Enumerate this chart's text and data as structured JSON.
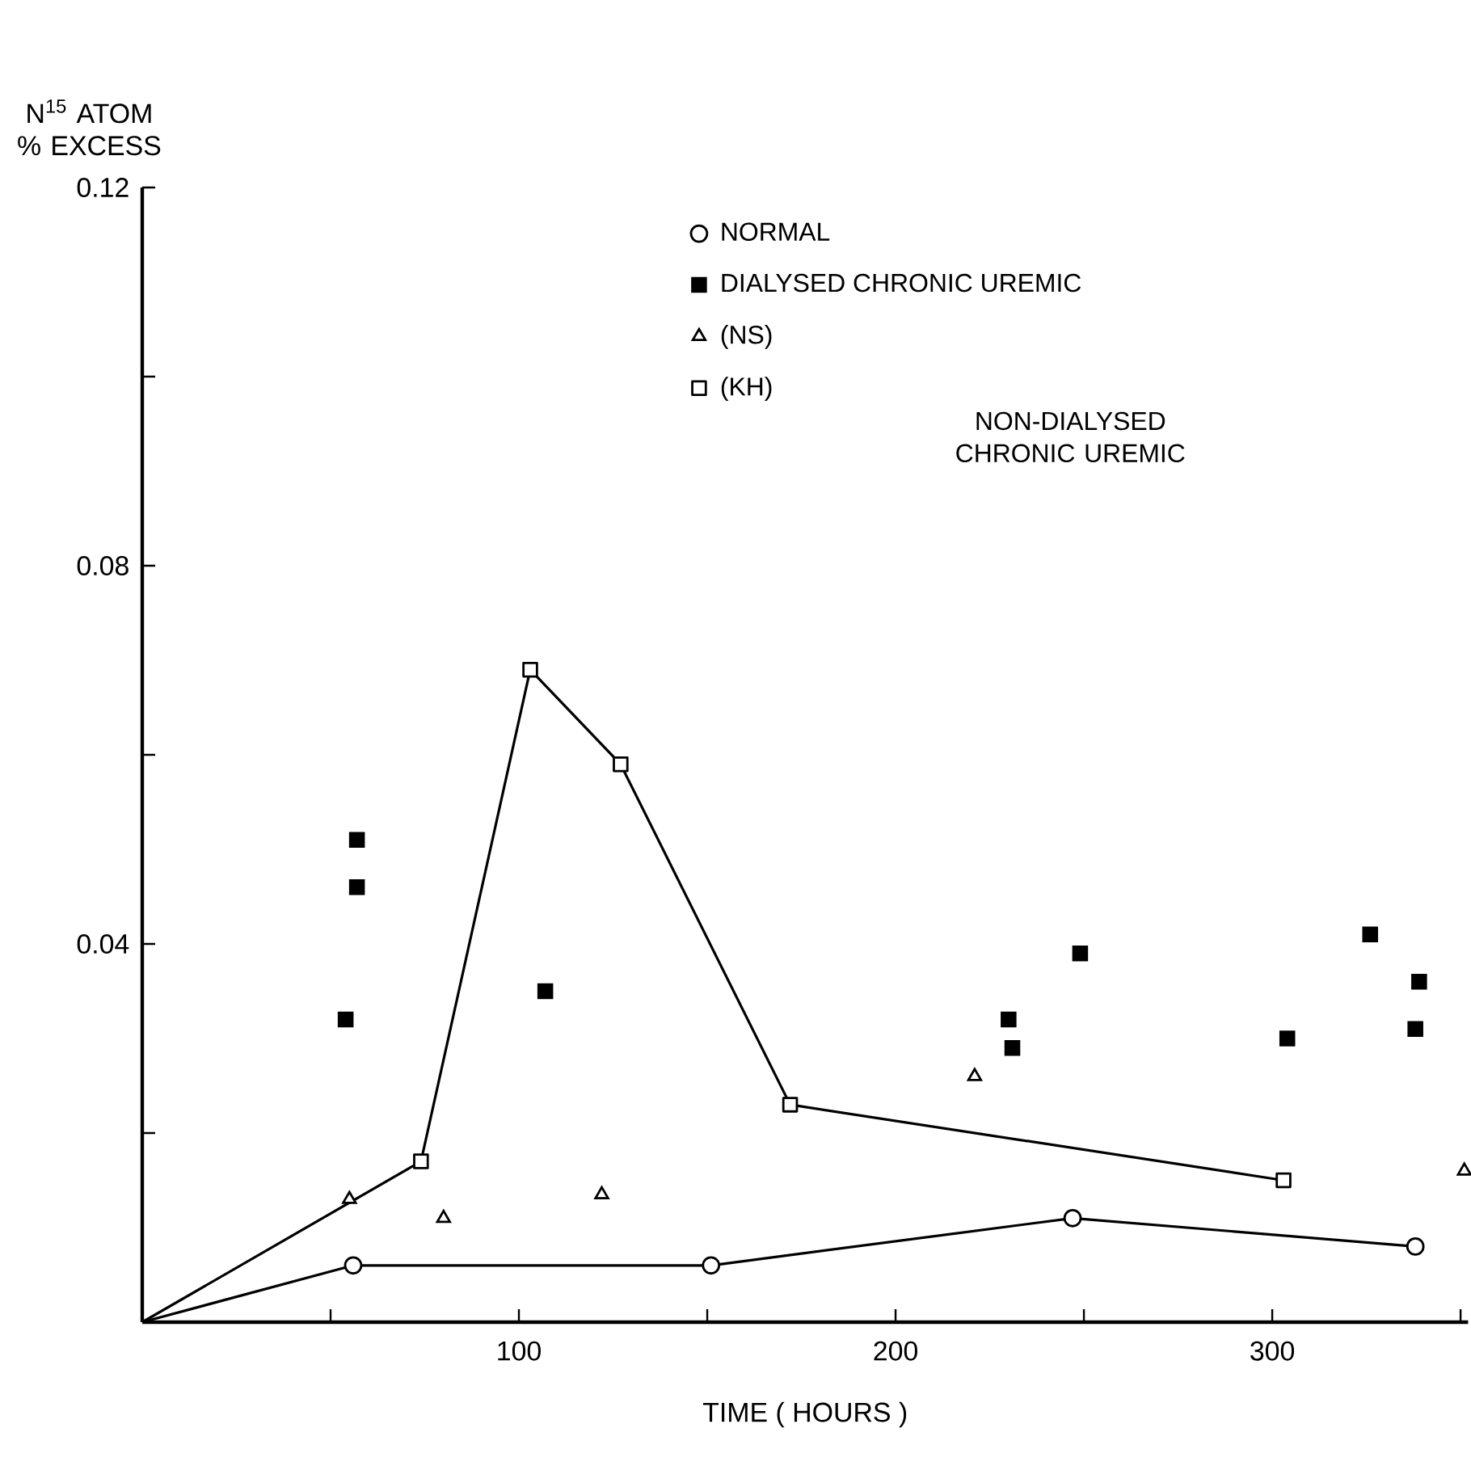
{
  "chart_data": {
    "type": "scatter",
    "xlabel": "TIME ( HOURS )",
    "ylabel": "N$^{15}$ ATOM % EXCESS",
    "annotations": [
      "NON-DIALYSED CHRONIC UREMIC"
    ],
    "xlim": [
      0,
      352
    ],
    "ylim": [
      0,
      0.12
    ],
    "xticks": [
      {
        "value": 50,
        "label": null
      },
      100,
      {
        "value": 150,
        "label": null
      },
      200,
      {
        "value": 250,
        "label": null
      },
      300,
      {
        "value": 350,
        "label": null
      }
    ],
    "yticks": [
      {
        "value": 0.02,
        "label": null
      },
      0.04,
      {
        "value": 0.06,
        "label": null
      },
      0.08,
      {
        "value": 0.1,
        "label": null
      },
      0.12
    ],
    "legend": "top right",
    "grid": false,
    "series": [
      {
        "name": "NORMAL",
        "type": "line",
        "marker": "circle",
        "color": "#ffffff",
        "x": [
          0,
          56,
          151,
          247,
          338
        ],
        "values": [
          0,
          0.006,
          0.006,
          0.011,
          0.008
        ]
      },
      {
        "name": "DIALYSED CHRONIC UREMIC",
        "marker": "square",
        "color": "#000000",
        "x": [
          57,
          57,
          54,
          107,
          230,
          231,
          249,
          304,
          326,
          339,
          338
        ],
        "values": [
          0.051,
          0.046,
          0.032,
          0.035,
          0.032,
          0.029,
          0.039,
          0.03,
          0.041,
          0.036,
          0.031
        ]
      },
      {
        "name": "(NS)",
        "marker": "triangle",
        "color": "#ffffff",
        "x": [
          55,
          80,
          122,
          221,
          351
        ],
        "values": [
          0.013,
          0.011,
          0.0135,
          0.026,
          0.016
        ]
      },
      {
        "name": "(KH)",
        "type": "line",
        "marker": "square",
        "color": "#ffffff",
        "x": [
          0,
          74,
          103,
          127,
          172,
          303
        ],
        "values": [
          0,
          0.017,
          0.069,
          0.059,
          0.023,
          0.015
        ]
      }
    ]
  }
}
